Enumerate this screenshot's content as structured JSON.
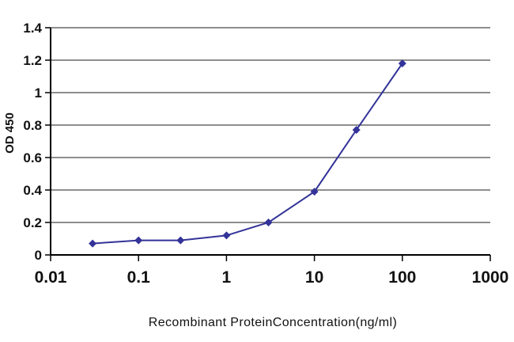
{
  "chart_data": {
    "type": "line",
    "title": "",
    "xlabel": "Recombinant ProteinConcentration(ng/ml)",
    "ylabel": "OD 450",
    "xscale": "log",
    "xlim": [
      0.01,
      1000
    ],
    "ylim": [
      0,
      1.4
    ],
    "x_tick_values": [
      0.01,
      0.1,
      1,
      10,
      100,
      1000
    ],
    "x_tick_labels": [
      "0.01",
      "0.1",
      "1",
      "10",
      "100",
      "1000"
    ],
    "y_tick_values": [
      0,
      0.2,
      0.4,
      0.6,
      0.8,
      1,
      1.2,
      1.4
    ],
    "y_tick_labels": [
      "0",
      "0.2",
      "0.4",
      "0.6",
      "0.8",
      "1",
      "1.2",
      "1.4"
    ],
    "grid": true,
    "legend_position": "none",
    "marker": "diamond",
    "line_color": "#333399",
    "grid_color": "#4a4a4a",
    "axis_color": "#000000",
    "background": "#ffffff",
    "series": [
      {
        "name": "OD 450",
        "x": [
          0.03,
          0.1,
          0.3,
          1,
          3,
          10,
          30,
          100
        ],
        "y": [
          0.07,
          0.09,
          0.09,
          0.12,
          0.2,
          0.39,
          0.77,
          1.18
        ]
      }
    ]
  }
}
